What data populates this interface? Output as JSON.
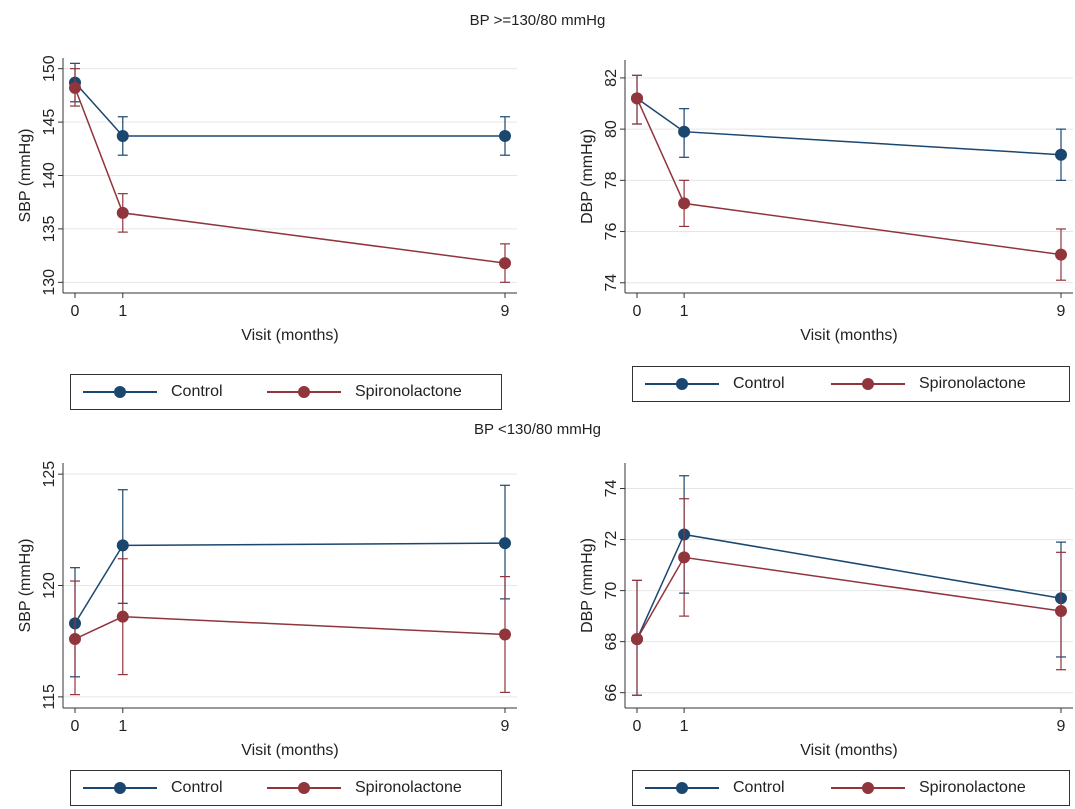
{
  "section_titles": {
    "top": "BP >=130/80 mmHg",
    "bottom": "BP <130/80 mmHg"
  },
  "colors": {
    "control": "#1a476f",
    "spironolactone": "#90353b"
  },
  "legend": {
    "control_label": "Control",
    "spironolactone_label": "Spironolactone"
  },
  "chart_data": [
    {
      "type": "line",
      "group": "BP >=130/80 mmHg",
      "xlabel": "Visit (months)",
      "ylabel": "SBP (mmHg)",
      "x": [
        0,
        1,
        9
      ],
      "xticks": [
        0,
        1,
        9
      ],
      "yticks": [
        130,
        135,
        140,
        145,
        150
      ],
      "ylim": [
        129,
        151
      ],
      "grid": true,
      "series": [
        {
          "name": "Control",
          "values": [
            148.7,
            143.7,
            143.7
          ],
          "ci_low": [
            146.9,
            141.9,
            141.9
          ],
          "ci_high": [
            150.5,
            145.5,
            145.5
          ]
        },
        {
          "name": "Spironolactone",
          "values": [
            148.2,
            136.5,
            131.8
          ],
          "ci_low": [
            146.5,
            134.7,
            130.0
          ],
          "ci_high": [
            150.0,
            138.3,
            133.6
          ]
        }
      ]
    },
    {
      "type": "line",
      "group": "BP >=130/80 mmHg",
      "xlabel": "Visit (months)",
      "ylabel": "DBP (mmHg)",
      "x": [
        0,
        1,
        9
      ],
      "xticks": [
        0,
        1,
        9
      ],
      "yticks": [
        74,
        76,
        78,
        80,
        82
      ],
      "ylim": [
        73.6,
        82.7
      ],
      "grid": true,
      "series": [
        {
          "name": "Control",
          "values": [
            81.2,
            79.9,
            79.0
          ],
          "ci_low": [
            80.2,
            78.9,
            78.0
          ],
          "ci_high": [
            82.1,
            80.8,
            80.0
          ]
        },
        {
          "name": "Spironolactone",
          "values": [
            81.2,
            77.1,
            75.1
          ],
          "ci_low": [
            80.2,
            76.2,
            74.1
          ],
          "ci_high": [
            82.1,
            78.0,
            76.1
          ]
        }
      ]
    },
    {
      "type": "line",
      "group": "BP <130/80 mmHg",
      "xlabel": "Visit (months)",
      "ylabel": "SBP (mmHg)",
      "x": [
        0,
        1,
        9
      ],
      "xticks": [
        0,
        1,
        9
      ],
      "yticks": [
        115,
        120,
        125
      ],
      "ylim": [
        114.5,
        125.5
      ],
      "grid": true,
      "series": [
        {
          "name": "Control",
          "values": [
            118.3,
            121.8,
            121.9
          ],
          "ci_low": [
            115.9,
            119.2,
            119.4
          ],
          "ci_high": [
            120.8,
            124.3,
            124.5
          ]
        },
        {
          "name": "Spironolactone",
          "values": [
            117.6,
            118.6,
            117.8
          ],
          "ci_low": [
            115.1,
            116.0,
            115.2
          ],
          "ci_high": [
            120.2,
            121.2,
            120.4
          ]
        }
      ]
    },
    {
      "type": "line",
      "group": "BP <130/80 mmHg",
      "xlabel": "Visit (months)",
      "ylabel": "DBP (mmHg)",
      "x": [
        0,
        1,
        9
      ],
      "xticks": [
        0,
        1,
        9
      ],
      "yticks": [
        66,
        68,
        70,
        72,
        74
      ],
      "ylim": [
        65.4,
        75
      ],
      "grid": true,
      "series": [
        {
          "name": "Control",
          "values": [
            68.1,
            72.2,
            69.7
          ],
          "ci_low": [
            65.9,
            69.9,
            67.4
          ],
          "ci_high": [
            70.4,
            74.5,
            71.9
          ]
        },
        {
          "name": "Spironolactone",
          "values": [
            68.1,
            71.3,
            69.2
          ],
          "ci_low": [
            65.9,
            69.0,
            66.9
          ],
          "ci_high": [
            70.4,
            73.6,
            71.5
          ]
        }
      ]
    }
  ]
}
